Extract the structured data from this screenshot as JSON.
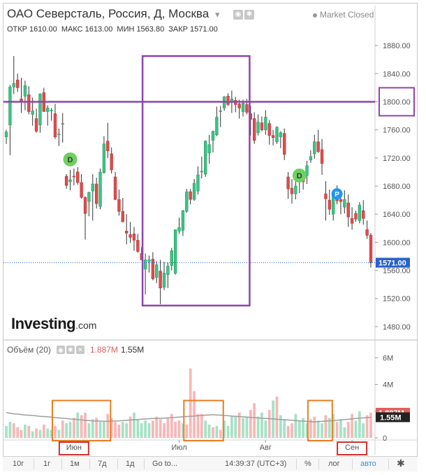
{
  "header": {
    "title": "ОАО Северсталь, Россия, Д, Москва",
    "chevron": "▾",
    "market_status": "Market Closed",
    "ohlc": {
      "open_label": "ОТКР",
      "open_value": "1610.00",
      "high_label": "МАКС",
      "high_value": "1613.00",
      "low_label": "МИН",
      "low_value": "1563.80",
      "close_label": "ЗАКР",
      "close_value": "1571.00"
    }
  },
  "watermark": {
    "brand": "Investing",
    "suffix": ".com"
  },
  "volume_panel": {
    "label": "Объём (20)",
    "value_a": "1.887M",
    "value_b": "1.55M"
  },
  "toolbar": {
    "items": [
      "10г",
      "1г",
      "1м",
      "7д",
      "1д",
      "Go to...",
      "14:39:37 (UTC+3)",
      "%",
      "лог",
      "авто"
    ],
    "settings_icon": "gear-icon"
  },
  "colors": {
    "up": "#3cc384",
    "down": "#e04b4b",
    "volume_up": "#a5e2c5",
    "volume_down": "#f8b7b7",
    "highlight": "#8e44ad",
    "callout": "#e67e22",
    "month_box": "#d32f2f",
    "last_price_bg": "#2a62c9",
    "badge_green": "#6dd160",
    "badge_blue": "#2196f3"
  },
  "chart_data": {
    "type": "candlestick",
    "title": "ОАО Северсталь, Россия, Д, Москва",
    "y_axis": {
      "ticks": [
        1480,
        1520,
        1560,
        1600,
        1640,
        1680,
        1720,
        1760,
        1800,
        1840,
        1880
      ],
      "range": [
        1463,
        1895
      ]
    },
    "x_axis": {
      "month_labels": [
        "Июн",
        "Июл",
        "Авг",
        "Сен"
      ],
      "boxed_months": [
        "Июн",
        "Сен"
      ]
    },
    "last_price": "1571.00",
    "highlighted_level": {
      "value": 1800,
      "label": "1800.00"
    },
    "candles": [
      [
        1750,
        1760,
        1740,
        1757
      ],
      [
        1767,
        1824,
        1724,
        1821
      ],
      [
        1821,
        1865,
        1811,
        1826
      ],
      [
        1831,
        1840,
        1814,
        1820
      ],
      [
        1804,
        1834,
        1784,
        1800
      ],
      [
        1808,
        1830,
        1788,
        1823
      ],
      [
        1810,
        1822,
        1782,
        1786
      ],
      [
        1782,
        1806,
        1766,
        1787
      ],
      [
        1776,
        1790,
        1756,
        1758
      ],
      [
        1767,
        1812,
        1756,
        1811
      ],
      [
        1813,
        1820,
        1786,
        1786
      ],
      [
        1786,
        1795,
        1766,
        1791
      ],
      [
        1787,
        1791,
        1773,
        1788
      ],
      [
        1783,
        1797,
        1747,
        1750
      ],
      [
        1753,
        1762,
        1737,
        1754
      ],
      [
        1768,
        1784,
        1742,
        1769
      ],
      [
        1694,
        1697,
        1676,
        1681
      ],
      [
        1686,
        1703,
        1674,
        1689
      ],
      [
        1694,
        1705,
        1681,
        1693
      ],
      [
        1700,
        1707,
        1682,
        1685
      ],
      [
        1685,
        1697,
        1662,
        1664
      ],
      [
        1664,
        1665,
        1604,
        1641
      ],
      [
        1658,
        1672,
        1637,
        1671
      ],
      [
        1673,
        1697,
        1631,
        1683
      ],
      [
        1683,
        1692,
        1648,
        1655
      ],
      [
        1651,
        1705,
        1647,
        1700
      ],
      [
        1699,
        1751,
        1698,
        1740
      ],
      [
        1744,
        1770,
        1720,
        1730
      ],
      [
        1726,
        1735,
        1698,
        1703
      ],
      [
        1693,
        1700,
        1660,
        1661
      ],
      [
        1661,
        1675,
        1638,
        1644
      ],
      [
        1644,
        1663,
        1632,
        1629
      ],
      [
        1616,
        1640,
        1597,
        1613
      ],
      [
        1611,
        1629,
        1599,
        1607
      ],
      [
        1612,
        1622,
        1588,
        1603
      ],
      [
        1603,
        1612,
        1585,
        1587
      ],
      [
        1584,
        1593,
        1575,
        1575
      ],
      [
        1562,
        1584,
        1526,
        1575
      ],
      [
        1573,
        1581,
        1557,
        1575
      ],
      [
        1576,
        1586,
        1546,
        1548
      ],
      [
        1550,
        1573,
        1542,
        1568
      ],
      [
        1559,
        1575,
        1512,
        1535
      ],
      [
        1536,
        1572,
        1532,
        1556
      ],
      [
        1554,
        1571,
        1535,
        1566
      ],
      [
        1567,
        1592,
        1560,
        1588
      ],
      [
        1556,
        1617,
        1554,
        1618
      ],
      [
        1616,
        1635,
        1612,
        1621
      ],
      [
        1617,
        1646,
        1609,
        1645
      ],
      [
        1644,
        1676,
        1642,
        1672
      ],
      [
        1672,
        1676,
        1654,
        1661
      ],
      [
        1661,
        1690,
        1659,
        1684
      ],
      [
        1673,
        1708,
        1668,
        1696
      ],
      [
        1700,
        1722,
        1691,
        1701
      ],
      [
        1697,
        1745,
        1693,
        1744
      ],
      [
        1727,
        1753,
        1712,
        1739
      ],
      [
        1745,
        1759,
        1728,
        1758
      ],
      [
        1753,
        1793,
        1751,
        1778
      ],
      [
        1786,
        1794,
        1764,
        1787
      ],
      [
        1791,
        1808,
        1787,
        1807
      ],
      [
        1808,
        1812,
        1794,
        1796
      ],
      [
        1799,
        1816,
        1784,
        1804
      ],
      [
        1802,
        1807,
        1785,
        1796
      ],
      [
        1797,
        1803,
        1776,
        1791
      ],
      [
        1786,
        1803,
        1779,
        1798
      ],
      [
        1796,
        1804,
        1782,
        1785
      ],
      [
        1783,
        1794,
        1752,
        1775
      ],
      [
        1776,
        1785,
        1740,
        1745
      ],
      [
        1756,
        1782,
        1752,
        1771
      ],
      [
        1770,
        1779,
        1758,
        1760
      ],
      [
        1760,
        1788,
        1753,
        1778
      ],
      [
        1769,
        1774,
        1739,
        1752
      ],
      [
        1752,
        1760,
        1738,
        1749
      ],
      [
        1743,
        1765,
        1740,
        1764
      ],
      [
        1750,
        1758,
        1734,
        1756
      ],
      [
        1755,
        1762,
        1717,
        1725
      ],
      [
        1693,
        1700,
        1662,
        1676
      ],
      [
        1677,
        1690,
        1655,
        1669
      ],
      [
        1669,
        1693,
        1661,
        1680
      ],
      [
        1688,
        1704,
        1670,
        1691
      ],
      [
        1691,
        1701,
        1675,
        1686
      ],
      [
        1695,
        1716,
        1683,
        1709
      ],
      [
        1717,
        1731,
        1713,
        1722
      ],
      [
        1726,
        1753,
        1719,
        1743
      ],
      [
        1743,
        1760,
        1727,
        1729
      ],
      [
        1732,
        1747,
        1696,
        1712
      ],
      [
        1669,
        1687,
        1631,
        1662
      ],
      [
        1660,
        1675,
        1639,
        1647
      ],
      [
        1640,
        1673,
        1631,
        1671
      ],
      [
        1674,
        1681,
        1654,
        1659
      ],
      [
        1661,
        1668,
        1640,
        1658
      ],
      [
        1650,
        1674,
        1641,
        1661
      ],
      [
        1656,
        1668,
        1622,
        1636
      ],
      [
        1634,
        1650,
        1618,
        1627
      ],
      [
        1641,
        1645,
        1629,
        1633
      ],
      [
        1631,
        1657,
        1627,
        1653
      ],
      [
        1645,
        1660,
        1625,
        1634
      ],
      [
        1618,
        1631,
        1605,
        1610
      ],
      [
        1610,
        1613,
        1564,
        1571
      ]
    ],
    "volumes": [
      [
        0.9,
        1
      ],
      [
        1.2,
        1
      ],
      [
        1.1,
        0
      ],
      [
        0.8,
        0
      ],
      [
        0.6,
        0
      ],
      [
        1.0,
        1
      ],
      [
        0.9,
        0
      ],
      [
        0.5,
        1
      ],
      [
        0.7,
        0
      ],
      [
        0.6,
        1
      ],
      [
        1.0,
        0
      ],
      [
        0.7,
        1
      ],
      [
        0.6,
        1
      ],
      [
        0.9,
        0
      ],
      [
        0.6,
        1
      ],
      [
        1.3,
        0
      ],
      [
        1.1,
        1
      ],
      [
        1.2,
        1
      ],
      [
        1.5,
        0
      ],
      [
        1.9,
        1
      ],
      [
        1.7,
        0
      ],
      [
        1.9,
        0
      ],
      [
        1.1,
        1
      ],
      [
        1.4,
        1
      ],
      [
        1.5,
        0
      ],
      [
        1.2,
        1
      ],
      [
        1.2,
        1
      ],
      [
        1.8,
        0
      ],
      [
        1.5,
        0
      ],
      [
        1.2,
        0
      ],
      [
        1.0,
        0
      ],
      [
        1.2,
        1
      ],
      [
        1.1,
        1
      ],
      [
        1.6,
        0
      ],
      [
        1.9,
        1
      ],
      [
        1.4,
        1
      ],
      [
        1.1,
        1
      ],
      [
        1.3,
        1
      ],
      [
        1.1,
        1
      ],
      [
        1.3,
        0
      ],
      [
        1.6,
        0
      ],
      [
        1.4,
        0
      ],
      [
        1.1,
        0
      ],
      [
        1.5,
        0
      ],
      [
        1.8,
        0
      ],
      [
        1.2,
        0
      ],
      [
        1.3,
        0
      ],
      [
        1.1,
        1
      ],
      [
        1.0,
        0
      ],
      [
        5.2,
        0
      ],
      [
        3.5,
        0
      ],
      [
        1.8,
        0
      ],
      [
        1.8,
        0
      ],
      [
        1.3,
        1
      ],
      [
        1.0,
        1
      ],
      [
        0.8,
        0
      ],
      [
        0.9,
        1
      ],
      [
        0.6,
        0
      ],
      [
        1.3,
        1
      ],
      [
        0.9,
        1
      ],
      [
        1.6,
        1
      ],
      [
        1.6,
        1
      ],
      [
        1.9,
        0
      ],
      [
        1.5,
        1
      ],
      [
        1.6,
        1
      ],
      [
        2.1,
        0
      ],
      [
        2.6,
        0
      ],
      [
        1.6,
        1
      ],
      [
        1.9,
        1
      ],
      [
        1.3,
        1
      ],
      [
        2.1,
        0
      ],
      [
        2.8,
        1
      ],
      [
        3.1,
        0
      ],
      [
        1.7,
        1
      ],
      [
        1.4,
        1
      ],
      [
        0.9,
        0
      ],
      [
        1.1,
        0
      ],
      [
        1.8,
        1
      ],
      [
        1.3,
        1
      ],
      [
        1.5,
        1
      ],
      [
        1.1,
        1
      ],
      [
        1.4,
        0
      ],
      [
        1.6,
        0
      ],
      [
        1.3,
        1
      ],
      [
        1.1,
        1
      ],
      [
        1.7,
        0
      ],
      [
        1.5,
        1
      ],
      [
        1.8,
        1
      ],
      [
        1.2,
        0
      ],
      [
        1.4,
        1
      ],
      [
        0.8,
        1
      ],
      [
        1.2,
        0
      ],
      [
        1.8,
        0
      ],
      [
        1.3,
        1
      ],
      [
        2.0,
        1
      ],
      [
        1.1,
        1
      ],
      [
        1.7,
        0
      ],
      [
        1.9,
        0
      ]
    ],
    "volume_axis": {
      "ticks": [
        "6M",
        "4M",
        "2M",
        "0"
      ]
    },
    "volume_ma": [
      1.9,
      1.85,
      1.8,
      1.78,
      1.75,
      1.72,
      1.7,
      1.68,
      1.65,
      1.62,
      1.6,
      1.58,
      1.55,
      1.52,
      1.5,
      1.48,
      1.45,
      1.42,
      1.4,
      1.38,
      1.35,
      1.32,
      1.3,
      1.28,
      1.27,
      1.26,
      1.25,
      1.25,
      1.26,
      1.27,
      1.28,
      1.3,
      1.32,
      1.34,
      1.36,
      1.38,
      1.4,
      1.42,
      1.44,
      1.45,
      1.46,
      1.47,
      1.48,
      1.5,
      1.52,
      1.54,
      1.56,
      1.58,
      1.6,
      1.62,
      1.64,
      1.66,
      1.68,
      1.7,
      1.72,
      1.74,
      1.72,
      1.7,
      1.68,
      1.66,
      1.64,
      1.62,
      1.6,
      1.58,
      1.56,
      1.54,
      1.52,
      1.5,
      1.48,
      1.46,
      1.44,
      1.42,
      1.4,
      1.38,
      1.36,
      1.34,
      1.32,
      1.3,
      1.28,
      1.26,
      1.24,
      1.22,
      1.2,
      1.22,
      1.24,
      1.26,
      1.28,
      1.3,
      1.32,
      1.35,
      1.38,
      1.4,
      1.43,
      1.46,
      1.48,
      1.5,
      1.52,
      1.55
    ]
  }
}
